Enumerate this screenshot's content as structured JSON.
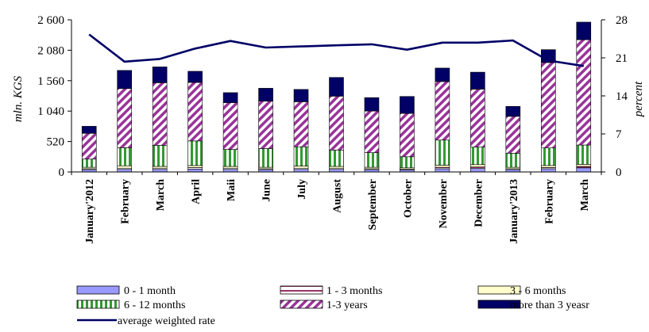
{
  "chart_data": {
    "type": "bar",
    "stacked": true,
    "categories": [
      "January'2012",
      "February",
      "March",
      "April",
      "Maii",
      "June",
      "July",
      "August",
      "September",
      "October",
      "November",
      "December",
      "January'2013",
      "February",
      "March"
    ],
    "series": [
      {
        "name": "0 - 1 month",
        "color": "#9999ff",
        "pattern": "solid",
        "values": [
          40,
          45,
          45,
          50,
          45,
          40,
          45,
          45,
          40,
          35,
          55,
          60,
          40,
          55,
          70
        ]
      },
      {
        "name": "1 - 3 months",
        "color": "#993366",
        "pattern": "hlines",
        "values": [
          15,
          20,
          20,
          25,
          20,
          15,
          20,
          20,
          15,
          15,
          25,
          25,
          15,
          20,
          25
        ]
      },
      {
        "name": "3 - 6 months",
        "color": "#ffffcc",
        "pattern": "solid",
        "values": [
          25,
          40,
          30,
          35,
          30,
          25,
          35,
          30,
          25,
          20,
          35,
          40,
          25,
          35,
          35
        ]
      },
      {
        "name": "6 - 12 months",
        "color": "#339933",
        "pattern": "vlines",
        "values": [
          140,
          310,
          360,
          420,
          290,
          320,
          330,
          280,
          250,
          190,
          430,
          300,
          240,
          300,
          330
        ]
      },
      {
        "name": "1-3 years",
        "color": "#993399",
        "pattern": "diagonal",
        "values": [
          440,
          1010,
          1070,
          1000,
          800,
          810,
          770,
          920,
          710,
          740,
          1000,
          990,
          630,
          1460,
          1800
        ]
      },
      {
        "name": "more than 3 yeasr",
        "color": "#000066",
        "pattern": "solid",
        "values": [
          120,
          310,
          270,
          190,
          170,
          220,
          210,
          320,
          230,
          290,
          230,
          290,
          170,
          220,
          300
        ]
      }
    ],
    "line_series": {
      "name": "average weighted rate",
      "color": "#000066",
      "axis": "right",
      "values": [
        25.3,
        20.3,
        20.8,
        22.7,
        24.1,
        22.9,
        23.1,
        23.3,
        23.5,
        22.5,
        23.8,
        23.8,
        24.2,
        20.5,
        19.5
      ]
    },
    "y_left": {
      "label": "mln. KGS",
      "ticks": [
        "0",
        "520",
        "1 040",
        "1 560",
        "2 080",
        "2 600"
      ],
      "min": 0,
      "max": 2600
    },
    "y_right": {
      "label": "percent",
      "ticks": [
        "0",
        "7",
        "14",
        "21",
        "28"
      ],
      "min": 0,
      "max": 28
    },
    "legend_position": "bottom",
    "grid": false
  }
}
